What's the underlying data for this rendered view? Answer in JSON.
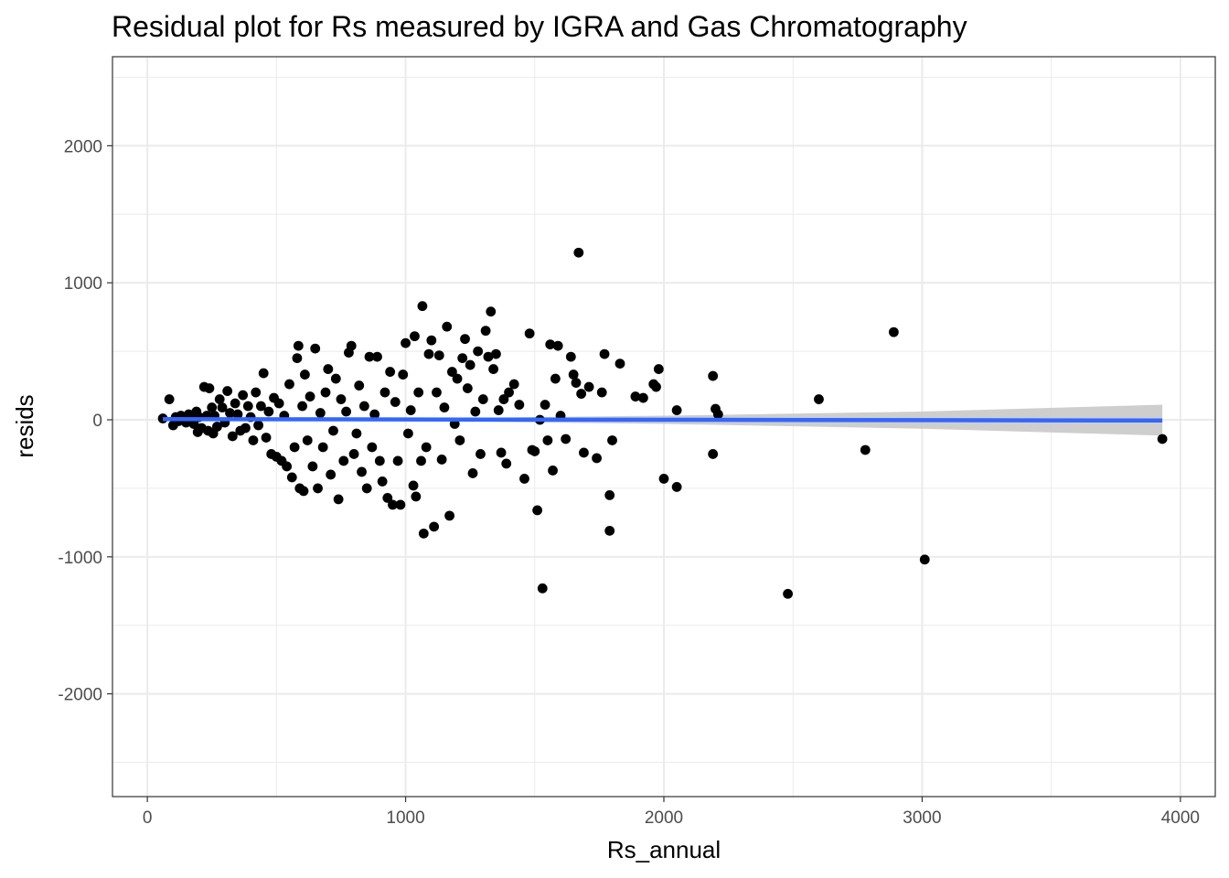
{
  "chart_data": {
    "type": "scatter",
    "title": "Residual plot for Rs measured by IGRA and Gas Chromatography",
    "xlabel": "Rs_annual",
    "ylabel": "resids",
    "xlim": [
      -135,
      4135
    ],
    "ylim": [
      -2750,
      2650
    ],
    "x_ticks": [
      0,
      1000,
      2000,
      3000,
      4000
    ],
    "x_tick_labels": [
      "0",
      "1000",
      "2000",
      "3000",
      "4000"
    ],
    "y_ticks": [
      -2000,
      -1000,
      0,
      1000,
      2000
    ],
    "y_tick_labels": [
      "-2000",
      "-1000",
      "0",
      "1000",
      "2000"
    ],
    "x_minor_ticks": [
      500,
      1500,
      2500,
      3500
    ],
    "y_minor_ticks": [
      -2500,
      -1500,
      -500,
      500,
      1500,
      2500
    ],
    "grid": true,
    "colors": {
      "points": "#000000",
      "fit_line": "#3366FF",
      "confidence_band": "#c6c6c6",
      "panel_border": "#333333",
      "grid": "#ebebeb"
    },
    "fit_line": {
      "x": [
        60,
        3930
      ],
      "y": [
        5,
        -5
      ]
    },
    "confidence_band": {
      "x": [
        60,
        1000,
        2000,
        3000,
        3930
      ],
      "upper": [
        18,
        10,
        30,
        60,
        110
      ],
      "lower": [
        -8,
        -8,
        -30,
        -65,
        -115
      ]
    },
    "series": [
      {
        "points": [
          [
            60,
            10
          ],
          [
            85,
            150
          ],
          [
            100,
            -40
          ],
          [
            110,
            20
          ],
          [
            120,
            -10
          ],
          [
            130,
            30
          ],
          [
            140,
            0
          ],
          [
            150,
            -20
          ],
          [
            160,
            40
          ],
          [
            170,
            10
          ],
          [
            180,
            -30
          ],
          [
            190,
            60
          ],
          [
            195,
            -90
          ],
          [
            200,
            20
          ],
          [
            210,
            -60
          ],
          [
            220,
            240
          ],
          [
            230,
            30
          ],
          [
            235,
            -80
          ],
          [
            240,
            230
          ],
          [
            250,
            90
          ],
          [
            255,
            -100
          ],
          [
            260,
            30
          ],
          [
            270,
            -50
          ],
          [
            280,
            150
          ],
          [
            290,
            90
          ],
          [
            300,
            -20
          ],
          [
            310,
            210
          ],
          [
            320,
            50
          ],
          [
            330,
            -120
          ],
          [
            340,
            120
          ],
          [
            350,
            40
          ],
          [
            360,
            -80
          ],
          [
            370,
            180
          ],
          [
            380,
            -60
          ],
          [
            390,
            100
          ],
          [
            400,
            20
          ],
          [
            410,
            -150
          ],
          [
            420,
            200
          ],
          [
            430,
            -40
          ],
          [
            440,
            100
          ],
          [
            450,
            340
          ],
          [
            460,
            -130
          ],
          [
            470,
            60
          ],
          [
            480,
            -250
          ],
          [
            490,
            160
          ],
          [
            500,
            -270
          ],
          [
            510,
            120
          ],
          [
            520,
            -300
          ],
          [
            530,
            30
          ],
          [
            540,
            -340
          ],
          [
            550,
            260
          ],
          [
            560,
            -420
          ],
          [
            570,
            -200
          ],
          [
            580,
            450
          ],
          [
            585,
            540
          ],
          [
            590,
            -500
          ],
          [
            600,
            100
          ],
          [
            605,
            -520
          ],
          [
            610,
            330
          ],
          [
            620,
            -150
          ],
          [
            630,
            170
          ],
          [
            640,
            -340
          ],
          [
            650,
            520
          ],
          [
            660,
            -500
          ],
          [
            670,
            50
          ],
          [
            680,
            -200
          ],
          [
            690,
            200
          ],
          [
            700,
            370
          ],
          [
            710,
            -400
          ],
          [
            720,
            -80
          ],
          [
            730,
            300
          ],
          [
            740,
            -580
          ],
          [
            750,
            150
          ],
          [
            760,
            -300
          ],
          [
            770,
            60
          ],
          [
            780,
            490
          ],
          [
            790,
            540
          ],
          [
            800,
            -250
          ],
          [
            810,
            -100
          ],
          [
            820,
            250
          ],
          [
            830,
            -380
          ],
          [
            840,
            100
          ],
          [
            850,
            -500
          ],
          [
            860,
            460
          ],
          [
            870,
            -200
          ],
          [
            880,
            40
          ],
          [
            890,
            460
          ],
          [
            900,
            -300
          ],
          [
            910,
            -450
          ],
          [
            920,
            200
          ],
          [
            930,
            -570
          ],
          [
            940,
            350
          ],
          [
            950,
            -620
          ],
          [
            960,
            130
          ],
          [
            970,
            -300
          ],
          [
            980,
            -620
          ],
          [
            990,
            330
          ],
          [
            1000,
            560
          ],
          [
            1010,
            -100
          ],
          [
            1020,
            70
          ],
          [
            1030,
            -480
          ],
          [
            1035,
            610
          ],
          [
            1040,
            -560
          ],
          [
            1050,
            200
          ],
          [
            1060,
            -300
          ],
          [
            1065,
            830
          ],
          [
            1070,
            -830
          ],
          [
            1080,
            -200
          ],
          [
            1090,
            480
          ],
          [
            1100,
            580
          ],
          [
            1110,
            -780
          ],
          [
            1120,
            200
          ],
          [
            1130,
            470
          ],
          [
            1140,
            -290
          ],
          [
            1150,
            90
          ],
          [
            1160,
            680
          ],
          [
            1170,
            -700
          ],
          [
            1180,
            350
          ],
          [
            1190,
            -30
          ],
          [
            1200,
            300
          ],
          [
            1210,
            -150
          ],
          [
            1220,
            450
          ],
          [
            1230,
            590
          ],
          [
            1240,
            230
          ],
          [
            1250,
            400
          ],
          [
            1260,
            -390
          ],
          [
            1270,
            60
          ],
          [
            1280,
            500
          ],
          [
            1290,
            -250
          ],
          [
            1300,
            150
          ],
          [
            1310,
            650
          ],
          [
            1320,
            460
          ],
          [
            1330,
            790
          ],
          [
            1340,
            370
          ],
          [
            1350,
            480
          ],
          [
            1360,
            70
          ],
          [
            1370,
            -240
          ],
          [
            1380,
            150
          ],
          [
            1390,
            -320
          ],
          [
            1400,
            200
          ],
          [
            1420,
            260
          ],
          [
            1440,
            110
          ],
          [
            1460,
            -430
          ],
          [
            1480,
            630
          ],
          [
            1490,
            -220
          ],
          [
            1500,
            -230
          ],
          [
            1510,
            -660
          ],
          [
            1520,
            0
          ],
          [
            1530,
            -1230
          ],
          [
            1540,
            110
          ],
          [
            1550,
            -150
          ],
          [
            1560,
            550
          ],
          [
            1570,
            -370
          ],
          [
            1580,
            300
          ],
          [
            1590,
            540
          ],
          [
            1600,
            30
          ],
          [
            1620,
            -140
          ],
          [
            1640,
            460
          ],
          [
            1650,
            330
          ],
          [
            1660,
            270
          ],
          [
            1670,
            1220
          ],
          [
            1680,
            190
          ],
          [
            1690,
            -240
          ],
          [
            1710,
            240
          ],
          [
            1740,
            -280
          ],
          [
            1760,
            200
          ],
          [
            1770,
            480
          ],
          [
            1790,
            -550
          ],
          [
            1790,
            -810
          ],
          [
            1800,
            -150
          ],
          [
            1830,
            410
          ],
          [
            1890,
            170
          ],
          [
            1920,
            160
          ],
          [
            1960,
            260
          ],
          [
            1970,
            240
          ],
          [
            1980,
            370
          ],
          [
            2000,
            -430
          ],
          [
            2050,
            70
          ],
          [
            2050,
            -490
          ],
          [
            2190,
            320
          ],
          [
            2190,
            -250
          ],
          [
            2200,
            80
          ],
          [
            2210,
            40
          ],
          [
            2480,
            -1270
          ],
          [
            2600,
            150
          ],
          [
            2780,
            -220
          ],
          [
            2890,
            640
          ],
          [
            3010,
            -1020
          ],
          [
            3930,
            -140
          ]
        ]
      }
    ]
  }
}
